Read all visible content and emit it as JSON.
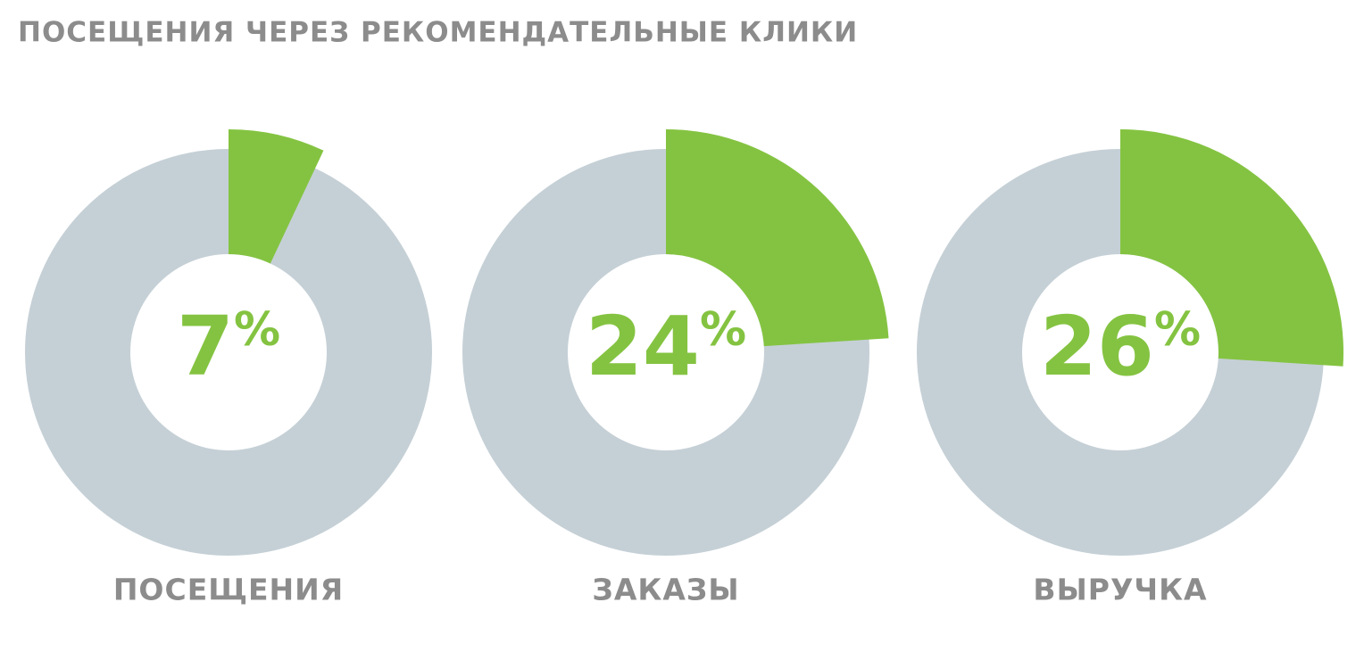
{
  "title": "ПОСЕЩЕНИЯ ЧЕРЕЗ РЕКОМЕНДАТЕЛЬНЫЕ КЛИКИ",
  "chart_data": [
    {
      "type": "pie",
      "label": "ПОСЕЩЕНИЯ",
      "values": [
        7
      ],
      "value_labels": [
        "7%"
      ],
      "colors": [
        "#84c341"
      ],
      "track_color": "#c5d0d6"
    },
    {
      "type": "pie",
      "label": "ЗАКАЗЫ",
      "values": [
        24
      ],
      "value_labels": [
        "24%"
      ],
      "colors": [
        "#84c341"
      ],
      "track_color": "#c5d0d6"
    },
    {
      "type": "pie",
      "label": "ВЫРУЧКА",
      "values": [
        26
      ],
      "value_labels": [
        "26%"
      ],
      "colors": [
        "#84c341"
      ],
      "track_color": "#c5d0d6"
    }
  ]
}
